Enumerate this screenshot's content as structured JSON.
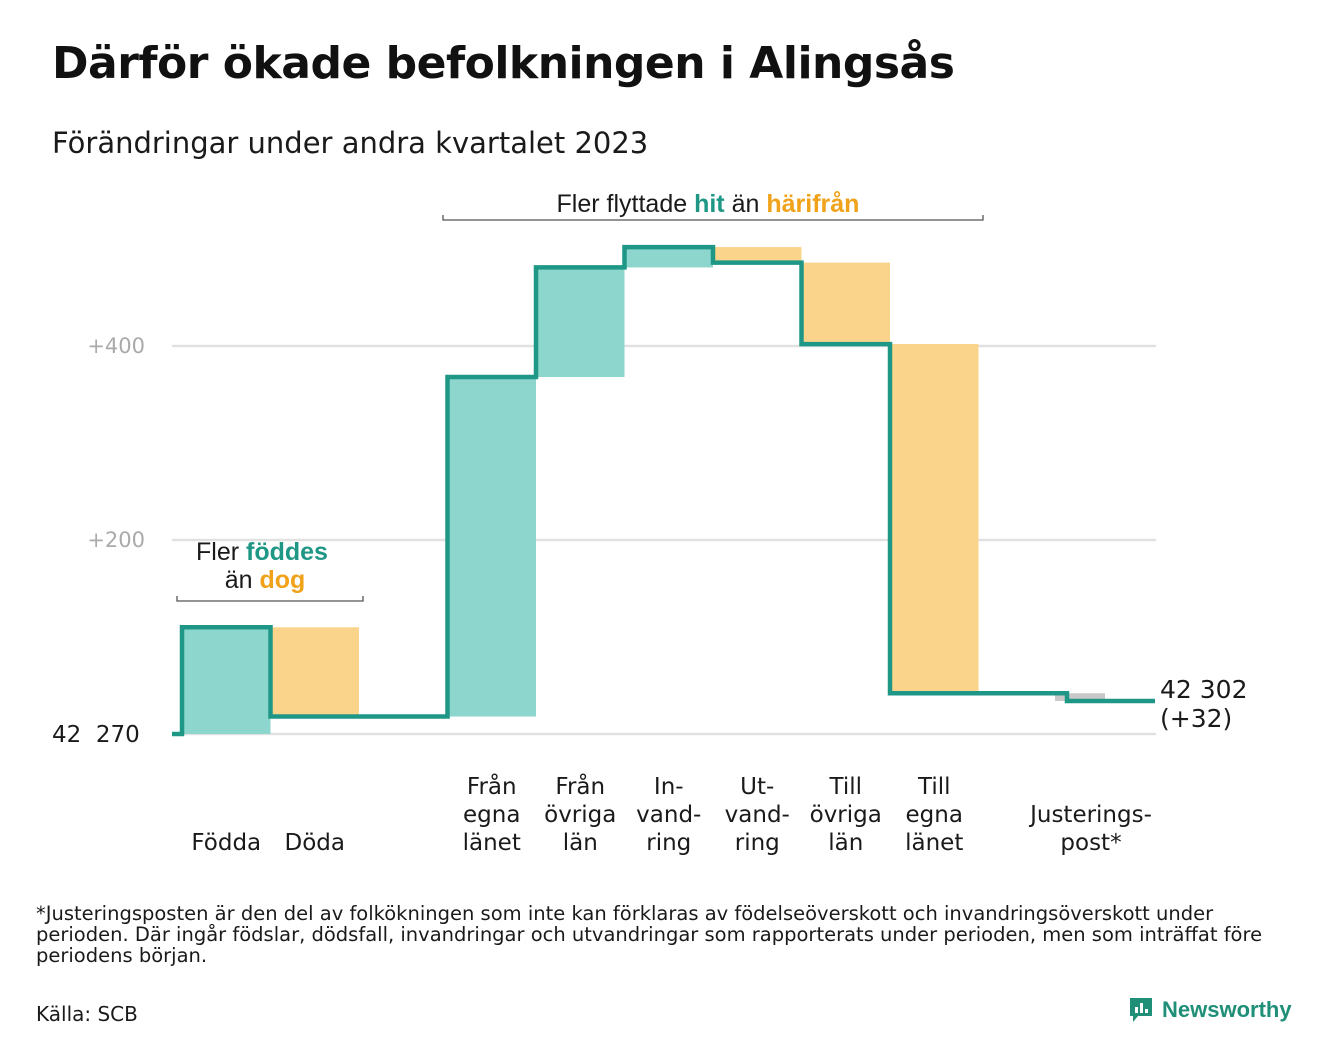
{
  "title": "Därför ökade befolkningen i Alingsås",
  "subtitle": "Förändringar under andra kvartalet 2023",
  "chart_data": {
    "type": "waterfall",
    "start": {
      "label": "42  270",
      "value": 42270
    },
    "end": {
      "label_line1": "42 302",
      "label_line2": "(+32)",
      "value": 42302,
      "change": 32
    },
    "y_ticks": [
      {
        "label": "+400",
        "value": 400
      },
      {
        "label": "+200",
        "value": 200
      }
    ],
    "ylim": [
      0,
      520
    ],
    "steps": [
      {
        "key": "fodda",
        "label": [
          "Födda"
        ],
        "delta": 110,
        "kind": "in"
      },
      {
        "key": "doda",
        "label": [
          "Döda"
        ],
        "delta": -92,
        "kind": "out"
      },
      {
        "key": "fran_egna",
        "label": [
          "Från",
          "egna",
          "länet"
        ],
        "delta": 350,
        "kind": "in"
      },
      {
        "key": "fran_ovriga",
        "label": [
          "Från",
          "övriga",
          "län"
        ],
        "delta": 113,
        "kind": "in"
      },
      {
        "key": "invandring",
        "label": [
          "In-",
          "vand-",
          "ring"
        ],
        "delta": 21,
        "kind": "in"
      },
      {
        "key": "utvandring",
        "label": [
          "Ut-",
          "vand-",
          "ring"
        ],
        "delta": -16,
        "kind": "out"
      },
      {
        "key": "till_ovriga",
        "label": [
          "Till",
          "övriga",
          "län"
        ],
        "delta": -84,
        "kind": "out"
      },
      {
        "key": "till_egna",
        "label": [
          "Till",
          "egna",
          "länet"
        ],
        "delta": -360,
        "kind": "out"
      },
      {
        "key": "justering",
        "label": [
          "Justerings-",
          "post*"
        ],
        "delta": -8,
        "kind": "adjust"
      }
    ],
    "annotations": [
      {
        "key": "births",
        "line1_before": "Fler ",
        "line1_highlight": "föddes",
        "line2_before": "än ",
        "line2_highlight": "dog"
      },
      {
        "key": "moves",
        "before": "Fler flyttade ",
        "highlight1": "hit",
        "middle": "än ",
        "highlight2": "härifrån"
      }
    ],
    "colors": {
      "in_fill": "#8dd6cd",
      "out_fill": "#fad48a",
      "adjust_fill": "#c8c8c8",
      "line": "#1f9786",
      "in_text": "#1f9786",
      "out_text": "#f0a21a",
      "grid": "#e1e1e1",
      "tick_text": "#aaaaaa"
    }
  },
  "footnote": "*Justeringsposten är den del av folkökningen som inte kan förklaras av födelseöverskott och invandringsöverskott under perioden. Där ingår födslar, dödsfall, invandringar och utvandringar som rapporterats under perioden, men som inträffat före periodens början.",
  "source": "Källa: SCB",
  "brand": {
    "name": "Newsworthy",
    "icon": "newsworthy-logo-icon"
  }
}
